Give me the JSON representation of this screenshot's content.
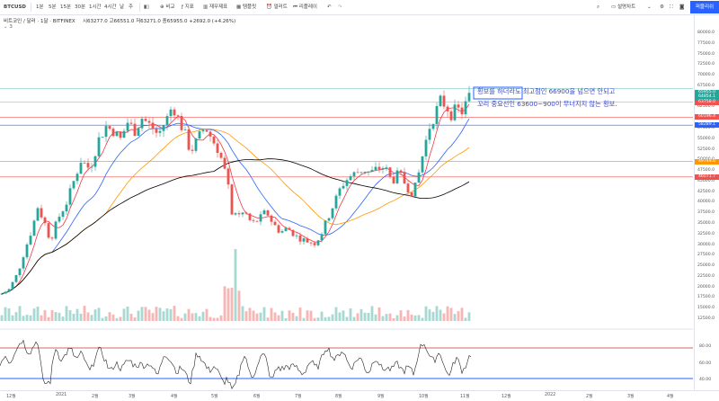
{
  "toolbar": {
    "symbol": "BTCUSD",
    "intervals": [
      "1분",
      "5분",
      "15분",
      "30분",
      "1시간",
      "4시간",
      "날",
      "주"
    ],
    "compare_label": "비교",
    "indicators_label": "지표",
    "financials_label": "재무제표",
    "templates_label": "템플릿",
    "alert_label": "얼러트",
    "replay_label": "리플레이",
    "layout_label": "설명차트",
    "publish_label": "퍼블리쉬"
  },
  "legend": {
    "title": "비트코인 / 달러 · 1달 · BITFINEX",
    "ohlc": "시63277.0  고66551.0  저63271.0  종65955.0  +2692.0 (+4.26%)",
    "sub": "3"
  },
  "annotation": {
    "line1": "횡보를 하더라도 최고점인 66900을 넘으면 안되고",
    "line2": "꼬리 중요선인 63600~900이 무너지지 않는 횡보."
  },
  "colors": {
    "up": "#26a69a",
    "down": "#ef5350",
    "accent": "#2962ff",
    "ma_red": "#f23645",
    "ma_blue": "#2962ff",
    "ma_orange": "#ff9800",
    "ma_black": "#000000"
  },
  "price_axis": {
    "labels": [
      "80000.0",
      "77500.0",
      "75000.0",
      "72500.0",
      "70000.0",
      "67500.0",
      "65000.0",
      "62500.0",
      "60000.0",
      "57500.0",
      "55000.0",
      "52500.0",
      "50000.0",
      "47500.0",
      "45000.0",
      "42500.0",
      "40000.0",
      "37500.0",
      "35000.0",
      "32500.0",
      "30000.0",
      "27500.0",
      "25000.0",
      "22500.0",
      "20000.0",
      "17500.0",
      "15000.0",
      "12500.0"
    ],
    "markers": [
      {
        "value": "65955.0",
        "color": "#26a69a"
      },
      {
        "value": "64854.1",
        "color": "#26a69a"
      },
      {
        "value": "63758.0",
        "color": "#ef5350"
      },
      {
        "value": "60196.4",
        "color": "#ef5350"
      },
      {
        "value": "58289.1",
        "color": "#2962ff"
      },
      {
        "value": "49749.6",
        "color": "#ff9800"
      },
      {
        "value": "46071.7",
        "color": "#ef5350"
      }
    ]
  },
  "oscillator": {
    "labels": [
      "80.00",
      "60.00",
      "40.00"
    ]
  },
  "time_axis": {
    "labels": [
      "12월",
      "2021",
      "2월",
      "3월",
      "4월",
      "5월",
      "6월",
      "7월",
      "8월",
      "9월",
      "10월",
      "11월",
      "12월",
      "2022",
      "2월",
      "3월",
      "4월"
    ]
  }
}
